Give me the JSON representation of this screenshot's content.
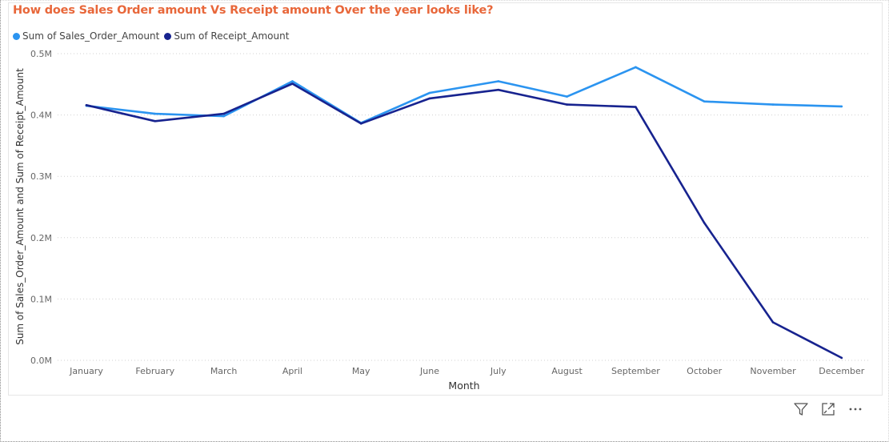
{
  "title": "How does Sales Order amount Vs Receipt amount Over the year looks like?",
  "legend": {
    "sales": "Sum of Sales_Order_Amount",
    "receipt": "Sum of Receipt_Amount"
  },
  "colors": {
    "title": "#e8673a",
    "sales": "#2b94f0",
    "receipt": "#17238f",
    "grid": "#d0d0d0",
    "tick": "#666666"
  },
  "toolbar": {
    "filter_icon": "filter-icon",
    "focus_icon": "focus-mode-icon",
    "more_icon": "more-options-icon"
  },
  "chart_data": {
    "type": "line",
    "title": "How does Sales Order amount Vs Receipt amount Over the year looks like?",
    "xlabel": "Month",
    "ylabel": "Sum of Sales_Order_Amount and Sum of Receipt_Amount",
    "categories": [
      "January",
      "February",
      "March",
      "April",
      "May",
      "June",
      "July",
      "August",
      "September",
      "October",
      "November",
      "December"
    ],
    "yticks": [
      "0.0M",
      "0.1M",
      "0.2M",
      "0.3M",
      "0.4M",
      "0.5M"
    ],
    "ylim": [
      0,
      500000
    ],
    "grid": true,
    "legend_position": "top-left",
    "series": [
      {
        "name": "Sum of Sales_Order_Amount",
        "color": "#2b94f0",
        "values": [
          415000,
          402000,
          398000,
          455000,
          387000,
          436000,
          455000,
          430000,
          478000,
          422000,
          417000,
          414000
        ]
      },
      {
        "name": "Sum of Receipt_Amount",
        "color": "#17238f",
        "values": [
          416000,
          390000,
          402000,
          451000,
          386000,
          427000,
          441000,
          417000,
          413000,
          224000,
          62000,
          4000
        ]
      }
    ]
  }
}
